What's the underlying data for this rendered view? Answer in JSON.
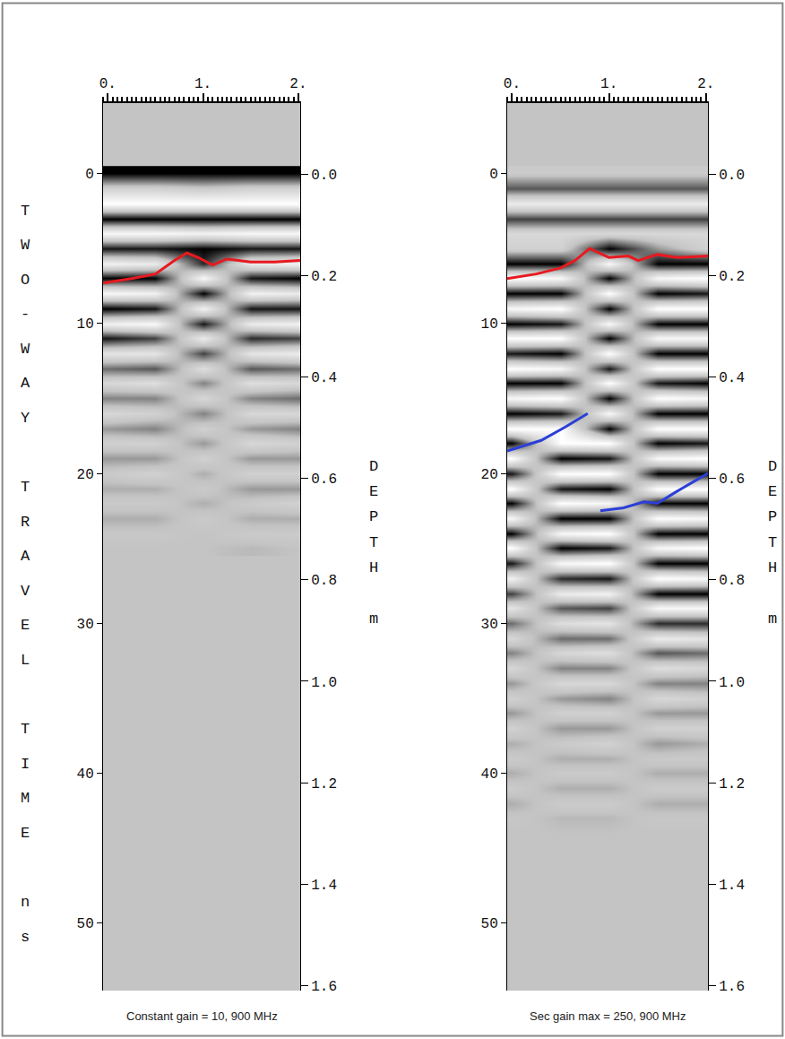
{
  "chart_data": [
    {
      "type": "heatmap",
      "caption": "Constant gain = 10, 900 MHz",
      "y_label": "TWO-WAY TRAVEL TIME ns",
      "y2_label": "DEPTH m",
      "x": [
        0,
        0.5,
        1,
        1.5,
        2
      ],
      "y": [
        0,
        1,
        2,
        3,
        4,
        5,
        6,
        7,
        8,
        9,
        10,
        11,
        12,
        13,
        14,
        15,
        16,
        17,
        18,
        19,
        20,
        21,
        22,
        23,
        24,
        25
      ],
      "z": [
        [
          -0.9,
          -0.9,
          -0.9,
          -0.9,
          -0.9
        ],
        [
          0.2,
          0.2,
          0.1,
          0.2,
          0.2
        ],
        [
          0.9,
          0.9,
          0.9,
          0.9,
          0.9
        ],
        [
          -0.9,
          -0.9,
          -0.9,
          -0.9,
          -0.9
        ],
        [
          0.8,
          0.8,
          0.7,
          0.8,
          0.8
        ],
        [
          -0.8,
          -0.8,
          -0.9,
          -0.8,
          -0.8
        ],
        [
          0.7,
          0.6,
          -0.7,
          0.6,
          0.7
        ],
        [
          -0.9,
          -0.9,
          0.8,
          -0.8,
          -0.9
        ],
        [
          0.8,
          0.7,
          -0.9,
          0.7,
          0.6
        ],
        [
          -0.9,
          -0.8,
          0.7,
          -0.8,
          -0.8
        ],
        [
          0.7,
          0.8,
          -0.8,
          0.6,
          0.7
        ],
        [
          -0.8,
          -0.6,
          0.6,
          -0.7,
          -0.6
        ],
        [
          0.5,
          0.5,
          -0.6,
          0.5,
          0.6
        ],
        [
          -0.4,
          -0.5,
          0.4,
          -0.5,
          -0.4
        ],
        [
          0.3,
          0.4,
          -0.3,
          0.4,
          0.3
        ],
        [
          -0.3,
          -0.3,
          0.3,
          -0.3,
          -0.4
        ],
        [
          0.3,
          0.2,
          -0.3,
          0.3,
          0.3
        ],
        [
          -0.2,
          -0.3,
          0.2,
          -0.2,
          -0.3
        ],
        [
          0.2,
          0.2,
          -0.2,
          0.3,
          0.2
        ],
        [
          -0.2,
          -0.2,
          0.2,
          -0.2,
          -0.2
        ],
        [
          0.1,
          0.2,
          -0.1,
          0.2,
          0.2
        ],
        [
          -0.1,
          -0.1,
          0.1,
          -0.2,
          -0.2
        ],
        [
          0.1,
          0.1,
          -0.1,
          0.1,
          0.2
        ],
        [
          -0.1,
          -0.1,
          0.1,
          -0.1,
          -0.1
        ],
        [
          0.05,
          0.05,
          0,
          0.1,
          0.1
        ],
        [
          0,
          0,
          0,
          -0.05,
          0
        ]
      ],
      "xlim": [
        -0.05,
        2.02
      ],
      "xticks": [
        {
          "value": 0,
          "label": "0."
        },
        {
          "value": 1,
          "label": "1."
        },
        {
          "value": 2,
          "label": "2."
        }
      ],
      "ylim": [
        54.5,
        -4.7
      ],
      "yticks": [
        0,
        10,
        20,
        30,
        40,
        50
      ],
      "y2lim": [
        1.61,
        -0.14
      ],
      "y2ticks": [
        {
          "value": 0,
          "label": "0.0"
        },
        0.2,
        0.4,
        0.6,
        0.8,
        {
          "value": 1,
          "label": "1.0"
        },
        1.2,
        1.4,
        1.6
      ],
      "series": [
        {
          "type": "line",
          "color": "#e8191f",
          "x": [
            -0.05,
            0.25,
            0.5,
            0.7,
            0.83,
            0.95,
            1.1,
            1.25,
            1.5,
            1.75,
            2.02
          ],
          "values": [
            7.3,
            7.0,
            6.7,
            5.8,
            5.3,
            5.6,
            6.1,
            5.7,
            5.9,
            5.9,
            5.8
          ]
        }
      ]
    },
    {
      "type": "heatmap",
      "caption": "Sec gain max = 250, 900 MHz",
      "y2_label": "DEPTH m",
      "x": [
        0,
        0.5,
        1,
        1.5,
        2
      ],
      "y": [
        0,
        1,
        2,
        3,
        4,
        5,
        6,
        7,
        8,
        9,
        10,
        11,
        12,
        13,
        14,
        15,
        16,
        17,
        18,
        19,
        20,
        21,
        22,
        23,
        24,
        25,
        26,
        27,
        28,
        29,
        30,
        31,
        32,
        33,
        34,
        35,
        36,
        37,
        38,
        39,
        40,
        41,
        42,
        43,
        44
      ],
      "z": [
        [
          0.1,
          0.1,
          0.1,
          0.1,
          0.1
        ],
        [
          -0.5,
          -0.5,
          -0.5,
          -0.5,
          -0.5
        ],
        [
          0.6,
          0.6,
          0.6,
          0.6,
          0.6
        ],
        [
          -0.6,
          -0.6,
          -0.6,
          -0.6,
          -0.6
        ],
        [
          0.3,
          0.3,
          0.3,
          0.3,
          0.3
        ],
        [
          0.2,
          0.2,
          -0.9,
          -0.2,
          0.2
        ],
        [
          -0.9,
          -0.9,
          0.8,
          -0.9,
          -0.9
        ],
        [
          0.9,
          0.8,
          -0.9,
          0.8,
          0.9
        ],
        [
          -0.9,
          -0.9,
          0.9,
          -0.9,
          -0.8
        ],
        [
          0.8,
          0.9,
          -0.9,
          0.9,
          0.9
        ],
        [
          -0.9,
          -0.8,
          0.8,
          -0.9,
          -0.9
        ],
        [
          0.9,
          0.9,
          -0.9,
          0.8,
          0.8
        ],
        [
          -0.8,
          -0.9,
          0.9,
          -0.9,
          -0.9
        ],
        [
          0.9,
          0.8,
          -0.8,
          0.9,
          0.9
        ],
        [
          -0.9,
          -0.9,
          0.9,
          -0.8,
          -0.9
        ],
        [
          0.8,
          0.9,
          -0.9,
          0.9,
          0.8
        ],
        [
          -0.9,
          -0.8,
          0.8,
          -0.9,
          -0.9
        ],
        [
          0.9,
          0.9,
          -0.9,
          0.9,
          0.9
        ],
        [
          -0.9,
          0.9,
          0.9,
          -0.9,
          -0.8
        ],
        [
          0.9,
          -0.9,
          -0.8,
          0.8,
          0.9
        ],
        [
          -0.8,
          0.9,
          0.9,
          -0.9,
          -0.9
        ],
        [
          0.9,
          -0.8,
          -0.9,
          0.9,
          0.9
        ],
        [
          -0.9,
          0.9,
          0.8,
          -0.9,
          -0.9
        ],
        [
          0.8,
          -0.9,
          -0.9,
          0.9,
          0.8
        ],
        [
          -0.9,
          0.8,
          0.9,
          -0.9,
          -0.9
        ],
        [
          0.9,
          -0.9,
          -0.8,
          0.8,
          0.9
        ],
        [
          -0.8,
          0.8,
          0.9,
          -0.9,
          -0.9
        ],
        [
          0.7,
          -0.7,
          -0.8,
          0.9,
          0.8
        ],
        [
          -0.6,
          0.6,
          0.7,
          -0.9,
          -0.9
        ],
        [
          0.5,
          -0.5,
          -0.6,
          0.8,
          0.8
        ],
        [
          -0.4,
          0.4,
          0.5,
          -0.7,
          -0.7
        ],
        [
          0.3,
          -0.4,
          -0.4,
          0.6,
          0.5
        ],
        [
          -0.3,
          0.3,
          0.4,
          -0.5,
          -0.4
        ],
        [
          0.3,
          -0.3,
          -0.3,
          0.4,
          0.3
        ],
        [
          -0.2,
          0.3,
          0.3,
          -0.3,
          -0.3
        ],
        [
          0.2,
          -0.2,
          -0.3,
          0.3,
          0.2
        ],
        [
          -0.2,
          0.2,
          0.2,
          -0.2,
          -0.2
        ],
        [
          0.2,
          -0.2,
          -0.2,
          0.2,
          0.2
        ],
        [
          -0.1,
          0.1,
          0.2,
          -0.2,
          -0.1
        ],
        [
          0.1,
          -0.1,
          -0.1,
          0.1,
          0.1
        ],
        [
          -0.1,
          0.1,
          0.1,
          -0.1,
          -0.1
        ],
        [
          0.1,
          -0.1,
          -0.1,
          0.1,
          0.1
        ],
        [
          -0.1,
          0.1,
          0.1,
          -0.1,
          -0.1
        ],
        [
          0.05,
          -0.05,
          -0.05,
          0.05,
          0.05
        ],
        [
          0,
          0,
          0,
          0,
          0
        ]
      ],
      "xlim": [
        -0.05,
        2.02
      ],
      "xticks": [
        {
          "value": 0,
          "label": "0."
        },
        {
          "value": 1,
          "label": "1."
        },
        {
          "value": 2,
          "label": "2."
        }
      ],
      "ylim": [
        54.5,
        -4.7
      ],
      "yticks": [
        0,
        10,
        20,
        30,
        40,
        50
      ],
      "y2lim": [
        1.61,
        -0.14
      ],
      "y2ticks": [
        {
          "value": 0,
          "label": "0.0"
        },
        0.2,
        0.4,
        0.6,
        0.8,
        {
          "value": 1,
          "label": "1.0"
        },
        1.2,
        1.4,
        1.6
      ],
      "series": [
        {
          "type": "line",
          "color": "#e8191f",
          "x": [
            -0.05,
            0.25,
            0.5,
            0.65,
            0.8,
            1.0,
            1.2,
            1.3,
            1.5,
            1.7,
            2.02
          ],
          "values": [
            7.0,
            6.7,
            6.3,
            5.8,
            5.0,
            5.6,
            5.5,
            5.8,
            5.4,
            5.6,
            5.5
          ]
        },
        {
          "type": "line",
          "color": "#2b3fd6",
          "x": [
            -0.05,
            0.3,
            0.55,
            0.78
          ],
          "values": [
            18.5,
            17.8,
            16.9,
            16.0
          ]
        },
        {
          "type": "line",
          "color": "#2b3fd6",
          "x": [
            0.91,
            1.15,
            1.36,
            1.5,
            1.7,
            2.02
          ],
          "values": [
            22.5,
            22.3,
            21.9,
            22.0,
            21.2,
            20.0
          ]
        }
      ]
    }
  ]
}
